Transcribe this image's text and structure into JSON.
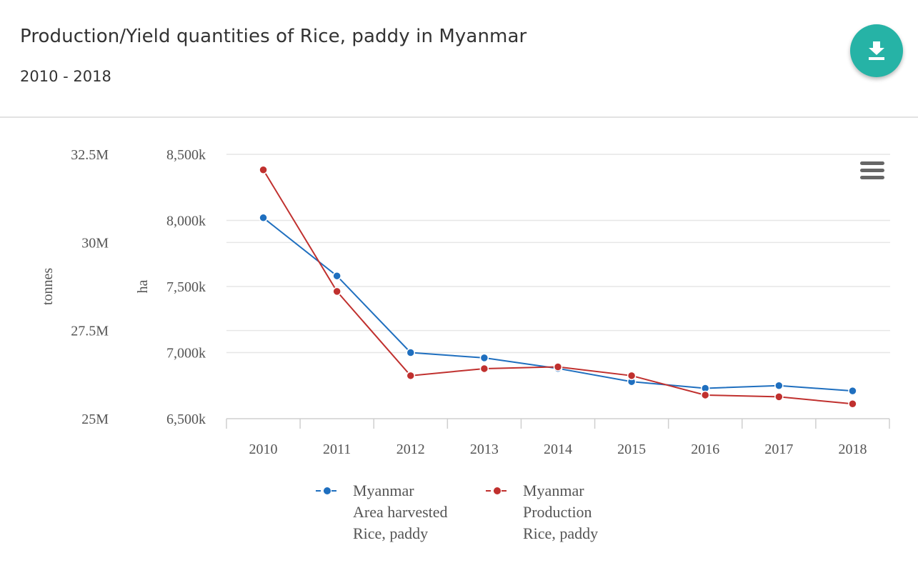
{
  "header": {
    "title": "Production/Yield quantities of Rice, paddy in Myanmar",
    "subtitle": "2010 - 2018",
    "download_icon": "download-icon"
  },
  "menu_icon": "hamburger-menu-icon",
  "colors": {
    "accent": "#26b3a6",
    "series_area": "#1f6fbf",
    "series_production": "#c0302e",
    "grid": "#e6e6e6",
    "axis_text": "#555555"
  },
  "chart_data": {
    "type": "line",
    "x": [
      "2010",
      "2011",
      "2012",
      "2013",
      "2014",
      "2015",
      "2016",
      "2017",
      "2018"
    ],
    "axes": {
      "left_outer": {
        "label": "tonnes",
        "ticks": [
          "32.5M",
          "30M",
          "27.5M",
          "25M"
        ],
        "ylim": [
          25000000,
          32500000
        ]
      },
      "left_inner": {
        "label": "ha",
        "ticks": [
          "8,500k",
          "8,000k",
          "7,500k",
          "7,000k",
          "6,500k"
        ],
        "ylim": [
          6500000,
          8500000
        ]
      }
    },
    "series": [
      {
        "name": "Myanmar\nArea harvested\nRice, paddy",
        "legend_lines": [
          "Myanmar",
          "Area harvested",
          "Rice, paddy"
        ],
        "axis": "left_inner",
        "color": "#1f6fbf",
        "values": [
          8020000,
          7580000,
          7000000,
          6960000,
          6880000,
          6780000,
          6730000,
          6750000,
          6710000
        ]
      },
      {
        "name": "Myanmar\nProduction\nRice, paddy",
        "legend_lines": [
          "Myanmar",
          "Production",
          "Rice, paddy"
        ],
        "axis": "left_outer",
        "color": "#c0302e",
        "values": [
          32060000,
          28610000,
          26220000,
          26420000,
          26470000,
          26220000,
          25670000,
          25620000,
          25420000
        ]
      }
    ],
    "grid": true,
    "legend_position": "bottom-center"
  }
}
